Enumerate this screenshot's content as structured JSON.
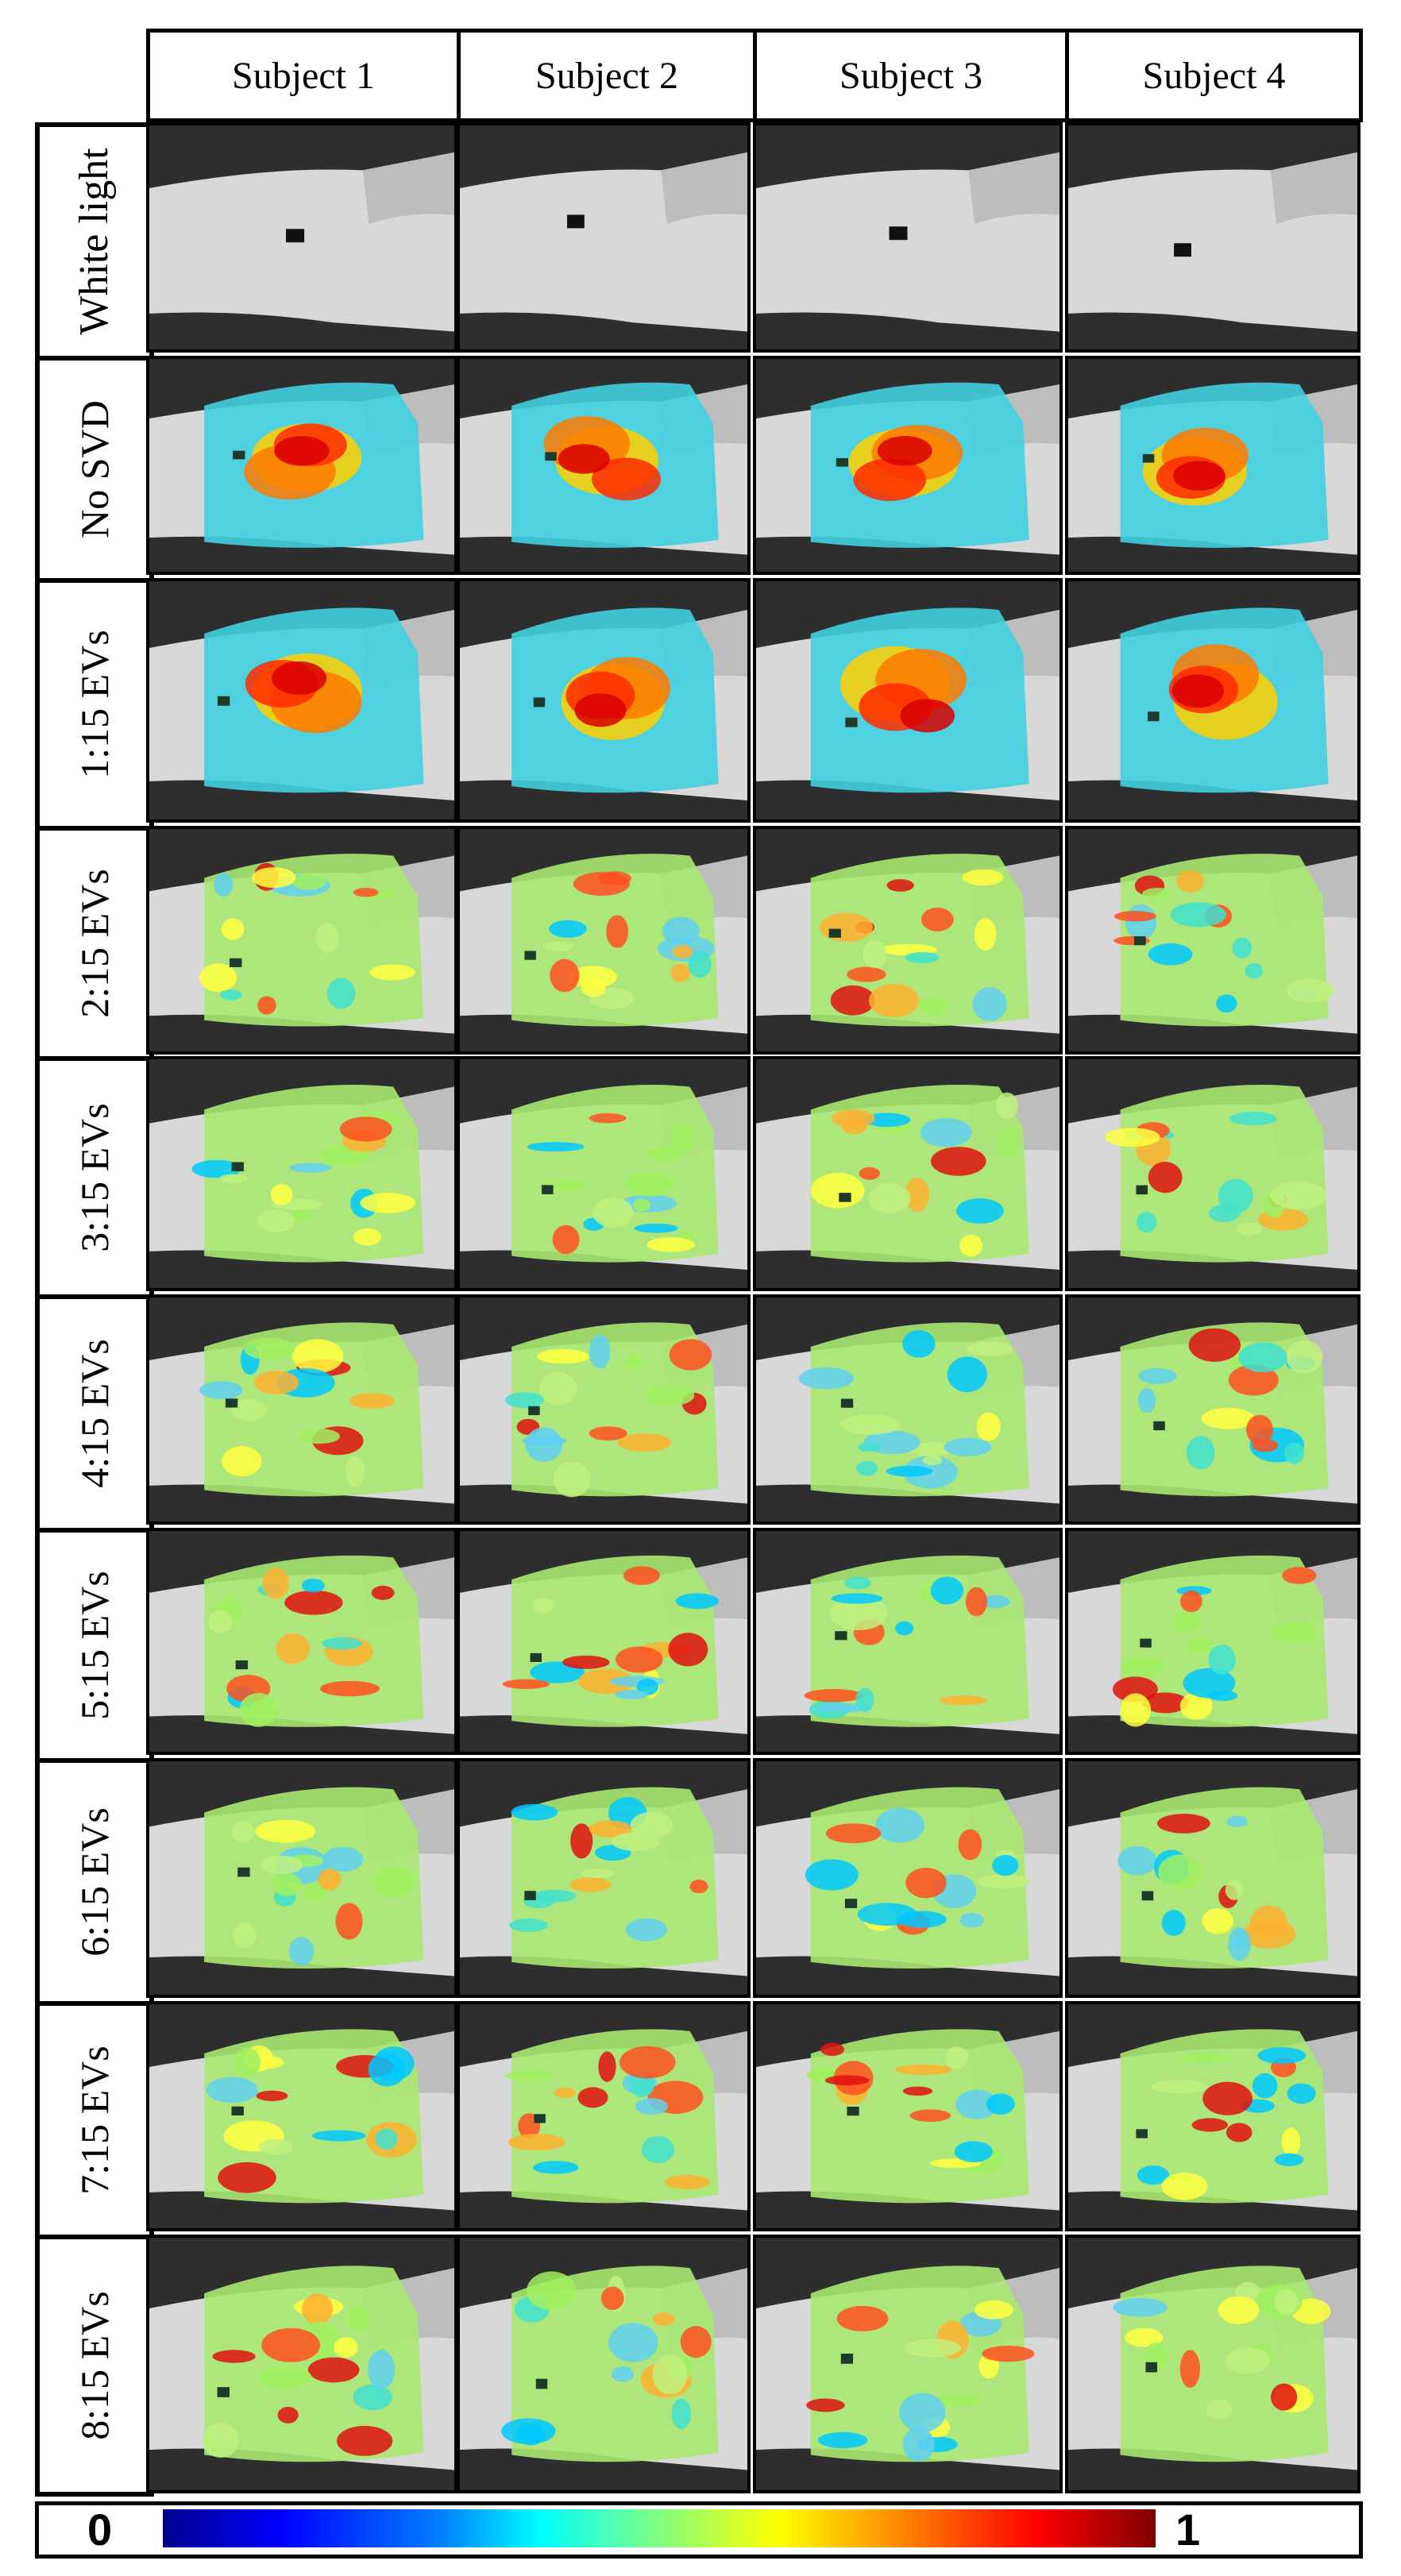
{
  "columns": [
    "Subject 1",
    "Subject 2",
    "Subject 3",
    "Subject 4"
  ],
  "rows": [
    "White light",
    "No SVD",
    "1:15 EVs",
    "2:15 EVs",
    "3:15 EVs",
    "4:15 EVs",
    "5:15 EVs",
    "6:15 EVs",
    "7:15 EVs",
    "8:15 EVs"
  ],
  "colorbar": {
    "min_label": "0",
    "max_label": "1"
  },
  "colors": {
    "low": "#00008f",
    "mid": "#80ff80",
    "high": "#ff0000"
  }
}
